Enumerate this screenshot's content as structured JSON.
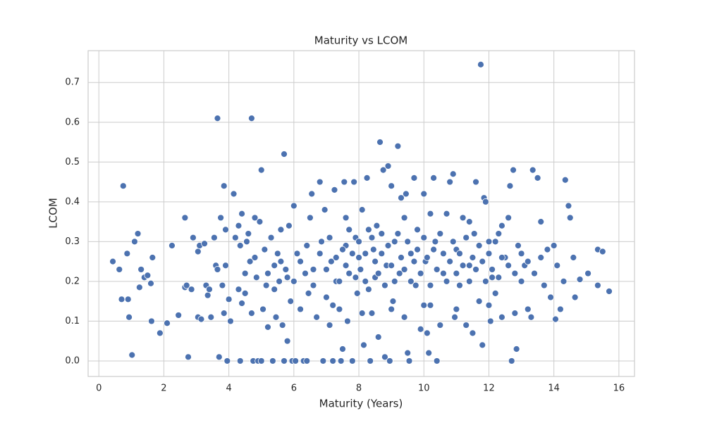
{
  "chart_data": {
    "type": "scatter",
    "title": "Maturity vs LCOM",
    "x_label": "Maturity (Years)",
    "y_label": "LCOM",
    "color": "#4c72b0",
    "grid": true,
    "xlim": [
      -0.33,
      16.48
    ],
    "ylim": [
      -0.039,
      0.78
    ],
    "xticks": [
      0,
      2,
      4,
      6,
      8,
      10,
      12,
      14,
      16
    ],
    "yticks": [
      {
        "value": 0,
        "label": "0.0"
      },
      0.1,
      0.2,
      0.3,
      0.4,
      0.5,
      0.6,
      0.7
    ],
    "x": [
      0.43,
      0.63,
      0.7,
      0.75,
      0.87,
      0.9,
      0.93,
      1.02,
      1.1,
      1.2,
      1.25,
      1.3,
      1.4,
      1.5,
      1.6,
      1.62,
      1.65,
      1.88,
      2.1,
      2.25,
      2.45,
      2.65,
      2.65,
      2.7,
      2.75,
      2.85,
      2.9,
      3.05,
      3.05,
      3.1,
      3.15,
      3.25,
      3.3,
      3.35,
      3.4,
      3.45,
      3.55,
      3.6,
      3.65,
      3.65,
      3.7,
      3.75,
      3.8,
      3.85,
      3.85,
      3.9,
      3.9,
      3.95,
      4.0,
      4.05,
      4.15,
      4.2,
      4.3,
      4.3,
      4.35,
      4.4,
      4.35,
      4.4,
      4.5,
      4.55,
      4.6,
      4.65,
      4.7,
      4.7,
      4.75,
      4.8,
      4.85,
      4.9,
      4.95,
      5.0,
      5.0,
      5.05,
      5.1,
      5.15,
      5.2,
      5.3,
      5.35,
      5.4,
      5.45,
      5.5,
      5.55,
      5.6,
      5.65,
      5.7,
      5.7,
      5.75,
      5.8,
      5.85,
      5.9,
      5.95,
      6.0,
      6.05,
      6.1,
      6.2,
      6.3,
      6.35,
      6.4,
      6.45,
      6.5,
      6.55,
      6.6,
      6.7,
      6.8,
      6.85,
      6.9,
      6.95,
      7.0,
      7.1,
      7.15,
      7.2,
      7.25,
      7.3,
      7.4,
      7.45,
      7.5,
      7.55,
      7.6,
      7.65,
      7.7,
      7.8,
      7.85,
      7.9,
      7.95,
      8.0,
      8.1,
      8.15,
      8.2,
      8.25,
      8.3,
      8.35,
      8.4,
      8.45,
      8.5,
      8.6,
      8.65,
      8.7,
      8.75,
      8.8,
      8.85,
      8.9,
      8.95,
      9.0,
      9.05,
      9.1,
      9.2,
      9.25,
      9.3,
      9.4,
      9.45,
      9.5,
      9.55,
      9.6,
      9.7,
      9.75,
      9.8,
      9.9,
      10.0,
      10.05,
      10.1,
      10.15,
      10.2,
      10.3,
      10.35,
      10.4,
      10.5,
      10.6,
      10.7,
      10.8,
      10.9,
      10.95,
      11.0,
      11.1,
      11.2,
      11.3,
      11.4,
      11.5,
      11.55,
      11.6,
      11.7,
      11.75,
      11.8,
      11.85,
      11.9,
      12.0,
      12.05,
      12.1,
      12.2,
      12.3,
      12.4,
      12.5,
      12.6,
      12.65,
      12.7,
      12.75,
      12.8,
      12.85,
      12.9,
      13.0,
      13.1,
      13.2,
      13.3,
      13.35,
      13.5,
      13.6,
      13.7,
      13.8,
      13.9,
      14.0,
      14.05,
      14.1,
      14.2,
      14.3,
      14.35,
      14.45,
      14.5,
      14.6,
      14.65,
      14.8,
      15.05,
      15.35,
      15.35,
      15.5,
      15.7,
      6.2,
      6.4,
      6.6,
      6.8,
      7.0,
      7.1,
      7.3,
      7.4,
      7.5,
      7.6,
      7.7,
      7.8,
      7.9,
      8.0,
      8.05,
      8.2,
      8.3,
      8.4,
      8.5,
      8.55,
      8.6,
      8.7,
      8.8,
      8.9,
      9.0,
      9.1,
      9.2,
      9.3,
      9.4,
      9.5,
      9.6,
      9.7,
      9.8,
      9.9,
      10.0,
      10.1,
      10.2,
      10.3,
      10.4,
      10.5,
      10.6,
      10.7,
      10.8,
      10.9,
      11.0,
      11.1,
      11.2,
      11.3,
      11.4,
      11.5,
      11.6,
      11.7,
      11.8,
      11.9,
      12.0,
      12.1,
      12.2,
      12.3,
      12.4,
      12.6,
      12.8,
      13.0,
      13.2,
      13.4,
      13.6,
      5.2,
      5.4,
      5.6,
      5.8,
      6.0,
      4.8,
      4.5,
      7.2,
      8.1,
      9.0,
      10.0,
      11.0,
      12.0,
      7.6,
      9.4,
      10.2,
      11.4,
      12.4
    ],
    "values": [
      0.25,
      0.23,
      0.155,
      0.44,
      0.27,
      0.155,
      0.11,
      0.015,
      0.3,
      0.32,
      0.185,
      0.23,
      0.21,
      0.215,
      0.195,
      0.1,
      0.26,
      0.07,
      0.095,
      0.29,
      0.115,
      0.36,
      0.185,
      0.19,
      0.01,
      0.18,
      0.31,
      0.275,
      0.11,
      0.29,
      0.105,
      0.295,
      0.19,
      0.165,
      0.18,
      0.11,
      0.31,
      0.24,
      0.61,
      0.23,
      0.01,
      0.36,
      0.19,
      0.44,
      0.12,
      0.33,
      0.24,
      0,
      0.155,
      0.1,
      0.42,
      0.31,
      0.18,
      0.34,
      0.29,
      0.37,
      0,
      0.145,
      0.22,
      0.3,
      0.32,
      0.25,
      0.61,
      0.12,
      0,
      0.36,
      0.21,
      0,
      0.35,
      0.48,
      0,
      0.13,
      0.28,
      0.19,
      0.085,
      0.31,
      0,
      0.24,
      0.11,
      0.27,
      0.2,
      0.33,
      0.09,
      0.52,
      0,
      0.23,
      0.05,
      0.34,
      0.15,
      0,
      0.39,
      0,
      0.27,
      0.13,
      0,
      0.22,
      0,
      0.17,
      0.36,
      0.42,
      0.23,
      0.11,
      0.45,
      0.3,
      0,
      0.38,
      0.16,
      0.09,
      0.25,
      0,
      0.43,
      0.2,
      0.13,
      0,
      0.03,
      0.45,
      0.29,
      0.1,
      0.22,
      0,
      0.45,
      0.31,
      0.17,
      0.26,
      0.38,
      0.04,
      0.2,
      0.46,
      0.33,
      0,
      0.12,
      0.28,
      0.21,
      0.06,
      0.55,
      0.32,
      0.48,
      0.01,
      0.24,
      0.49,
      0,
      0.44,
      0.15,
      0.3,
      0.54,
      0.22,
      0.41,
      0.11,
      0.42,
      0.02,
      0,
      0.27,
      0.46,
      0.19,
      0.33,
      0.08,
      0.42,
      0.25,
      0.07,
      0.02,
      0.14,
      0.46,
      0.3,
      0,
      0.09,
      0.22,
      0.37,
      0.45,
      0.47,
      0.11,
      0.28,
      0.19,
      0.36,
      0.09,
      0.24,
      0.07,
      0.32,
      0.45,
      0.15,
      0.745,
      0.04,
      0.41,
      0.4,
      0.3,
      0.1,
      0.21,
      0.17,
      0.32,
      0.11,
      0.26,
      0.36,
      0.44,
      0,
      0.48,
      0.12,
      0.03,
      0.29,
      0.2,
      0.24,
      0.13,
      0.11,
      0.48,
      0.46,
      0.35,
      0.19,
      0.28,
      0.16,
      0.29,
      0.105,
      0.24,
      0.13,
      0.2,
      0.455,
      0.39,
      0.36,
      0.26,
      0.16,
      0.205,
      0.22,
      0.28,
      0.19,
      0.275,
      0.175,
      0.25,
      0.29,
      0.19,
      0.27,
      0.23,
      0.31,
      0.26,
      0.2,
      0.28,
      0.24,
      0.33,
      0.27,
      0.21,
      0.3,
      0.23,
      0.27,
      0.18,
      0.31,
      0.25,
      0.34,
      0.22,
      0.27,
      0.19,
      0.29,
      0.24,
      0.2,
      0.32,
      0.26,
      0.23,
      0.3,
      0.2,
      0.25,
      0.28,
      0.22,
      0.31,
      0.26,
      0.19,
      0.28,
      0.23,
      0.32,
      0.27,
      0.2,
      0.25,
      0.3,
      0.22,
      0.27,
      0.24,
      0.31,
      0.2,
      0.26,
      0.23,
      0.29,
      0.25,
      0.2,
      0.27,
      0.23,
      0.3,
      0.21,
      0.26,
      0.24,
      0.22,
      0.27,
      0.25,
      0.22,
      0.26,
      0.22,
      0.18,
      0.25,
      0.21,
      0.2,
      0.26,
      0.17,
      0.14,
      0.12,
      0.13,
      0.14,
      0.13,
      0.14,
      0.36,
      0.36,
      0.37,
      0.35,
      0.34
    ]
  }
}
